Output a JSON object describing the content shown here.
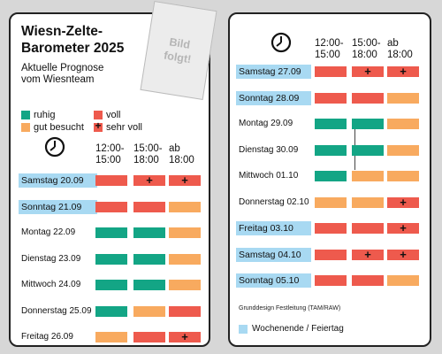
{
  "left_card": {
    "title": "Wiesn-Zelte-\nBarometer 2025",
    "subtitle": "Aktuelle Prognose\nvom Wiesnteam",
    "legend": [
      {
        "label": "ruhig",
        "color": "#13a585",
        "plus": false
      },
      {
        "label": "voll",
        "color": "#ee5a4d",
        "plus": false
      },
      {
        "label": "gut besucht",
        "color": "#f8aa5f",
        "plus": false
      },
      {
        "label": "sehr voll",
        "color": "#ee5a4d",
        "plus": true
      }
    ],
    "time_headers": [
      "12:00-\n15:00",
      "15:00-\n18:00",
      "ab\n18:00"
    ],
    "rows": [
      {
        "day": "Samstag 20.09",
        "weekend": true,
        "levels": [
          "voll",
          "sehr voll",
          "sehr voll"
        ]
      },
      {
        "day": "Sonntag 21.09",
        "weekend": true,
        "levels": [
          "voll",
          "voll",
          "gut besucht"
        ]
      },
      {
        "day": "Montag 22.09",
        "weekend": false,
        "levels": [
          "ruhig",
          "ruhig",
          "gut besucht"
        ]
      },
      {
        "day": "Dienstag 23.09",
        "weekend": false,
        "levels": [
          "ruhig",
          "ruhig",
          "gut besucht"
        ]
      },
      {
        "day": "Mittwoch 24.09",
        "weekend": false,
        "levels": [
          "ruhig",
          "ruhig",
          "gut besucht"
        ]
      },
      {
        "day": "Donnerstag 25.09",
        "weekend": false,
        "levels": [
          "ruhig",
          "gut besucht",
          "voll"
        ]
      },
      {
        "day": "Freitag 26.09",
        "weekend": false,
        "levels": [
          "gut besucht",
          "voll",
          "sehr voll"
        ]
      }
    ]
  },
  "right_card": {
    "time_headers": [
      "12:00-\n15:00",
      "15:00-\n18:00",
      "ab\n18:00"
    ],
    "rows": [
      {
        "day": "Samstag 27.09",
        "weekend": true,
        "levels": [
          "voll",
          "sehr voll",
          "sehr voll"
        ]
      },
      {
        "day": "Sonntag 28.09",
        "weekend": true,
        "levels": [
          "voll",
          "voll",
          "gut besucht"
        ]
      },
      {
        "day": "Montag 29.09",
        "weekend": false,
        "levels": [
          "ruhig",
          "ruhig",
          "gut besucht"
        ]
      },
      {
        "day": "Dienstag 30.09",
        "weekend": false,
        "levels": [
          "ruhig",
          "ruhig",
          "gut besucht"
        ]
      },
      {
        "day": "Mittwoch 01.10",
        "weekend": false,
        "levels": [
          "ruhig",
          "gut besucht",
          "gut besucht"
        ]
      },
      {
        "day": "Donnerstag 02.10",
        "weekend": false,
        "levels": [
          "gut besucht",
          "gut besucht",
          "sehr voll"
        ]
      },
      {
        "day": "Freitag 03.10",
        "weekend": true,
        "levels": [
          "voll",
          "voll",
          "sehr voll"
        ]
      },
      {
        "day": "Samstag 04.10",
        "weekend": true,
        "levels": [
          "voll",
          "sehr voll",
          "sehr voll"
        ]
      },
      {
        "day": "Sonntag 05.10",
        "weekend": true,
        "levels": [
          "voll",
          "voll",
          "gut besucht"
        ]
      }
    ],
    "footer_note": "Grunddesign Festleitung (TAM/RAW)",
    "footer_legend": "Wochenende / Feiertag"
  },
  "photo_placeholder": "Bild\nfolgt!",
  "icons": {
    "clock": "clock-icon"
  },
  "colors": {
    "ruhig": "#13a585",
    "gut besucht": "#f8aa5f",
    "voll": "#ee5a4d",
    "sehr voll": "#ee5a4d",
    "weekend": "#a8d9f2"
  }
}
